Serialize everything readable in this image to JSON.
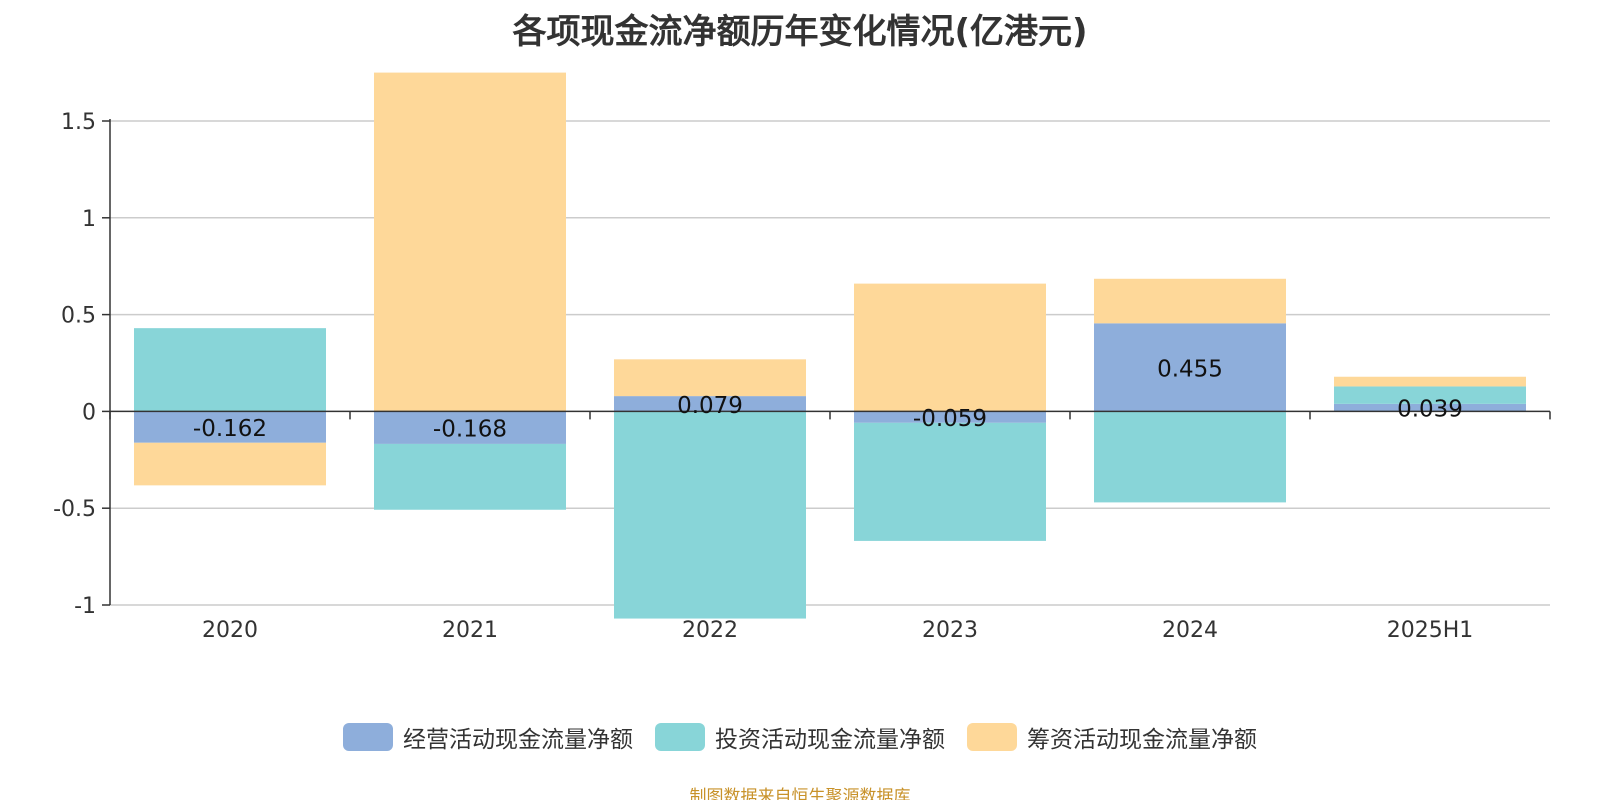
{
  "chart_data": {
    "type": "bar",
    "stacked": true,
    "title": "各项现金流净额历年变化情况(亿港元)",
    "categories": [
      "2020",
      "2021",
      "2022",
      "2023",
      "2024",
      "2025H1"
    ],
    "series": [
      {
        "name": "经营活动现金流量净额",
        "values": [
          -0.162,
          -0.168,
          0.079,
          -0.059,
          0.455,
          0.039
        ],
        "color": "#8eaedb",
        "labels": [
          "-0.162",
          "-0.168",
          "0.079",
          "-0.059",
          "0.455",
          "0.039"
        ]
      },
      {
        "name": "投资活动现金流量净额",
        "values": [
          0.43,
          -0.34,
          -1.07,
          -0.61,
          -0.47,
          0.09
        ],
        "color": "#88d5d8"
      },
      {
        "name": "筹资活动现金流量净额",
        "values": [
          -0.22,
          1.75,
          0.19,
          0.66,
          0.23,
          0.05
        ],
        "color": "#fed899"
      }
    ],
    "y_ticks": [
      "1.5",
      "1",
      "0.5",
      "0",
      "-0.5",
      "-1"
    ],
    "ylim": [
      -1,
      1.5
    ],
    "grid": true,
    "legend_position": "bottom"
  },
  "source": "制图数据来自恒生聚源数据库"
}
